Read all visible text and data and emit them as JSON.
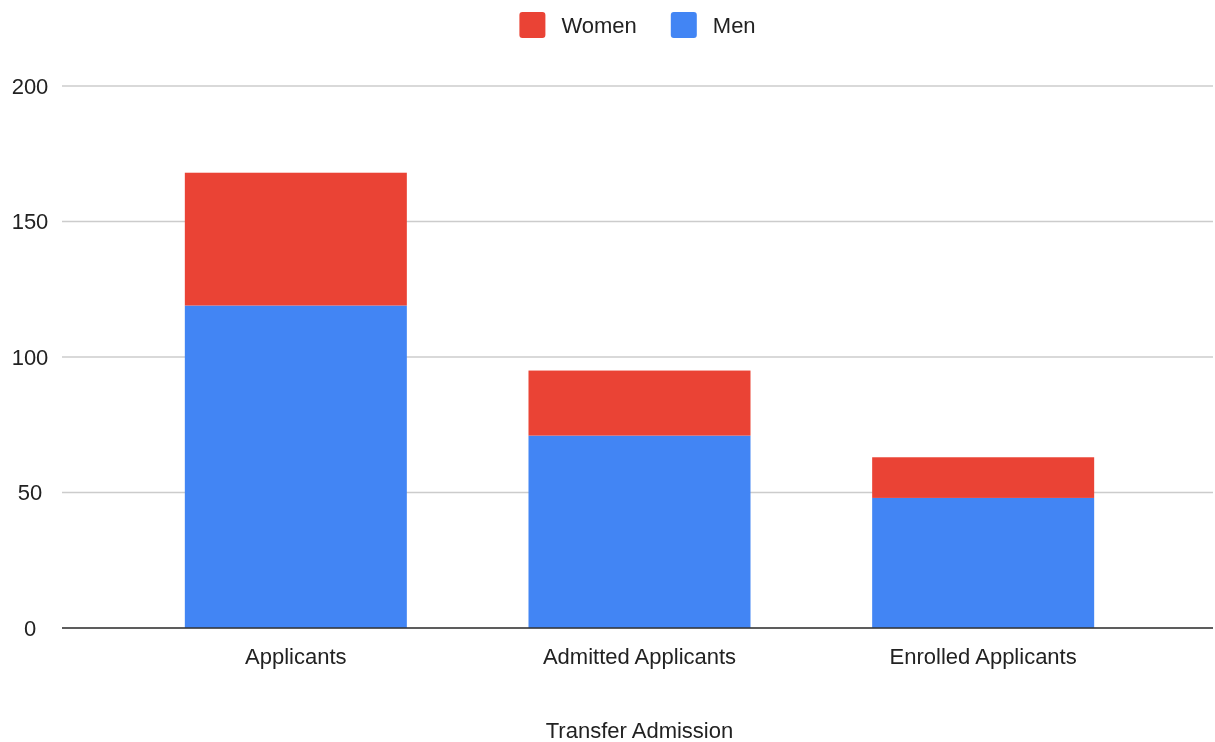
{
  "chart_data": {
    "type": "bar",
    "stacked": true,
    "xlabel": "Transfer Admission",
    "categories": [
      "Applicants",
      "Admitted Applicants",
      "Enrolled Applicants"
    ],
    "series": [
      {
        "name": "Men",
        "color": "#4285f4",
        "values": [
          119,
          71,
          48
        ]
      },
      {
        "name": "Women",
        "color": "#ea4335",
        "values": [
          49,
          24,
          15
        ]
      }
    ],
    "ylim": [
      0,
      200
    ],
    "yticks": [
      0,
      50,
      100,
      150,
      200
    ],
    "grid": "y",
    "legend": "top"
  }
}
